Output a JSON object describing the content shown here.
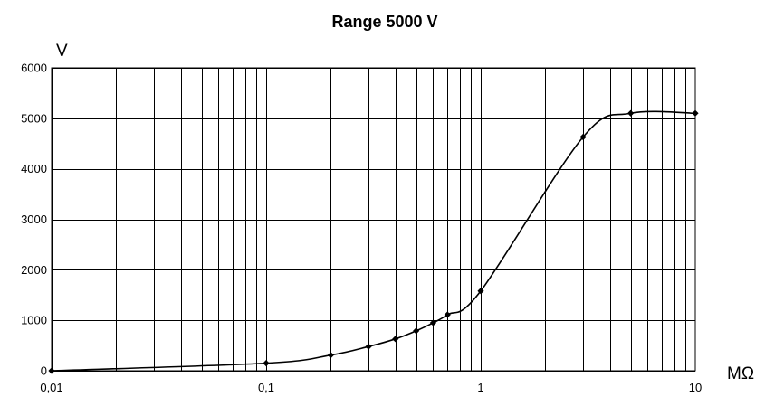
{
  "chart_data": {
    "type": "line",
    "title": "Range 5000 V",
    "ylabel": "V",
    "xlabel": "MΩ",
    "x_scale": "log",
    "xlim": [
      0.01,
      10
    ],
    "ylim": [
      0,
      6000
    ],
    "grid": true,
    "legend": "none",
    "x_tick_labels": [
      "0,01",
      "0,1",
      "1",
      "10"
    ],
    "x_tick_values": [
      0.01,
      0.1,
      1,
      10
    ],
    "y_ticks": [
      0,
      1000,
      2000,
      3000,
      4000,
      5000,
      6000
    ],
    "series": [
      {
        "x": [
          0.01,
          0.1,
          0.2,
          0.3,
          0.4,
          0.5,
          0.6,
          0.7,
          1,
          3,
          5,
          10
        ],
        "y": [
          0,
          150,
          310,
          480,
          630,
          790,
          950,
          1110,
          1580,
          4630,
          5100,
          5100
        ]
      }
    ]
  }
}
